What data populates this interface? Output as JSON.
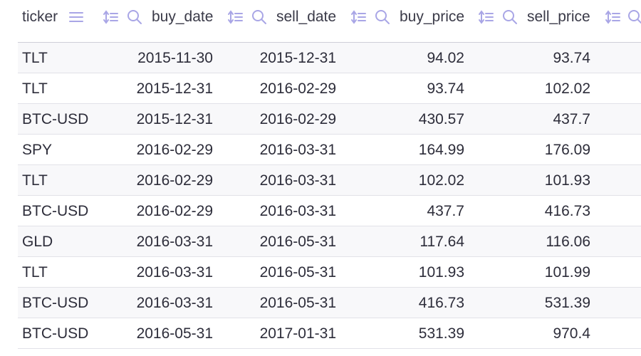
{
  "table": {
    "columns": [
      {
        "key": "ticker",
        "label": "ticker"
      },
      {
        "key": "buy_date",
        "label": "buy_date"
      },
      {
        "key": "sell_date",
        "label": "sell_date"
      },
      {
        "key": "buy_price",
        "label": "buy_price"
      },
      {
        "key": "sell_price",
        "label": "sell_price"
      }
    ],
    "header_icons": {
      "menu": "menu-icon",
      "sort": "sort-icon",
      "filter": "search-icon"
    },
    "rows": [
      {
        "ticker": "TLT",
        "buy_date": "2015-11-30",
        "sell_date": "2015-12-31",
        "buy_price": "94.02",
        "sell_price": "93.74"
      },
      {
        "ticker": "TLT",
        "buy_date": "2015-12-31",
        "sell_date": "2016-02-29",
        "buy_price": "93.74",
        "sell_price": "102.02"
      },
      {
        "ticker": "BTC-USD",
        "buy_date": "2015-12-31",
        "sell_date": "2016-02-29",
        "buy_price": "430.57",
        "sell_price": "437.7"
      },
      {
        "ticker": "SPY",
        "buy_date": "2016-02-29",
        "sell_date": "2016-03-31",
        "buy_price": "164.99",
        "sell_price": "176.09"
      },
      {
        "ticker": "TLT",
        "buy_date": "2016-02-29",
        "sell_date": "2016-03-31",
        "buy_price": "102.02",
        "sell_price": "101.93"
      },
      {
        "ticker": "BTC-USD",
        "buy_date": "2016-02-29",
        "sell_date": "2016-03-31",
        "buy_price": "437.7",
        "sell_price": "416.73"
      },
      {
        "ticker": "GLD",
        "buy_date": "2016-03-31",
        "sell_date": "2016-05-31",
        "buy_price": "117.64",
        "sell_price": "116.06"
      },
      {
        "ticker": "TLT",
        "buy_date": "2016-03-31",
        "sell_date": "2016-05-31",
        "buy_price": "101.93",
        "sell_price": "101.99"
      },
      {
        "ticker": "BTC-USD",
        "buy_date": "2016-03-31",
        "sell_date": "2016-05-31",
        "buy_price": "416.73",
        "sell_price": "531.39"
      },
      {
        "ticker": "BTC-USD",
        "buy_date": "2016-05-31",
        "sell_date": "2017-01-31",
        "buy_price": "531.39",
        "sell_price": "970.4"
      }
    ]
  },
  "colors": {
    "icon": "#a9a6e6",
    "border": "#cfcfd8",
    "row_alt": "#f8f8fa",
    "text": "#2d2d3a"
  }
}
